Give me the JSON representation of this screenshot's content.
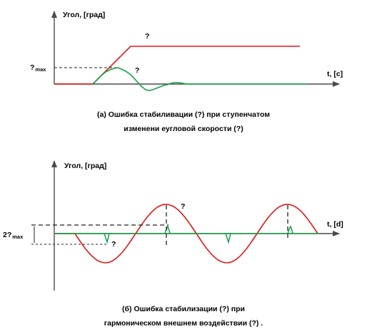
{
  "top": {
    "y_axis_label": "Угол, [град]",
    "x_axis_label": "t, [c]",
    "max_label_symbol": "?",
    "max_label_sub": "max",
    "step_label": "?",
    "error_label": "?",
    "caption_line1": "(а) Ошибка стабиливации (?) при ступенчатом",
    "caption_line2": "изменени еугловой скорости (?)"
  },
  "bottom": {
    "y_axis_label": "Угол, [град]",
    "x_axis_label": "t, [d]",
    "amp_label_prefix": "2?",
    "amp_label_sub": "max",
    "upper_label": "?",
    "lower_label": "?",
    "caption_line1": "(б) Ошибка стабилизации (?) при",
    "caption_line2": "гармоническом внешнем воздействии  (?) ."
  },
  "colors": {
    "axis": "#4a4a4a",
    "input_signal": "#e01818",
    "error_signal": "#18a048",
    "dashed": "#222222"
  }
}
